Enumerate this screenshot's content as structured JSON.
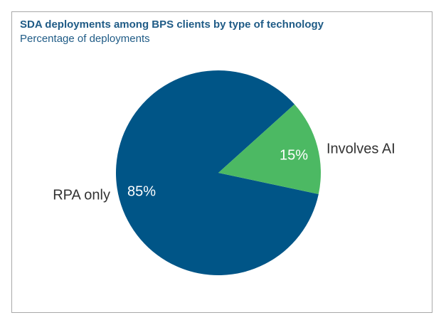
{
  "chart_data": {
    "type": "pie",
    "title": "SDA deployments among BPS clients by type of technology",
    "subtitle": "Percentage of deployments",
    "slices": [
      {
        "label": "RPA only",
        "value": 85,
        "value_label": "85%",
        "color": "#005587"
      },
      {
        "label": "Involves AI",
        "value": 15,
        "value_label": "15%",
        "color": "#4cb963"
      }
    ]
  }
}
